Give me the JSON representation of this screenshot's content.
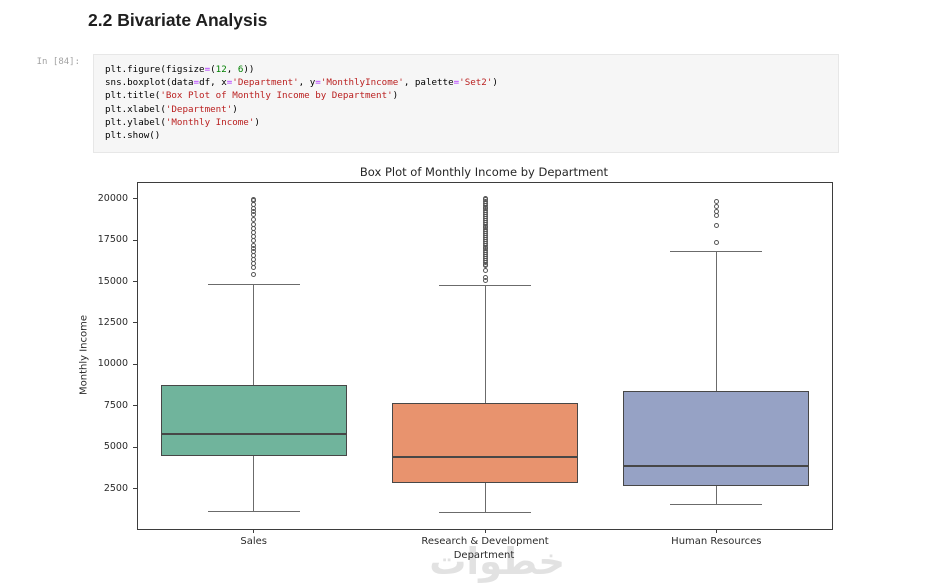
{
  "heading": {
    "text": "2.2 Bivariate Analysis"
  },
  "code_cell": {
    "prompt": "In [84]:",
    "token_colors": {
      "p": "#000000",
      "n": "#008000",
      "s": "#ba2121",
      "o": "#aa22ff"
    },
    "lines": [
      [
        [
          "p",
          "plt.figure(figsize"
        ],
        [
          "o",
          "="
        ],
        [
          "p",
          "("
        ],
        [
          "n",
          "12"
        ],
        [
          "p",
          ", "
        ],
        [
          "n",
          "6"
        ],
        [
          "p",
          "))"
        ]
      ],
      [
        [
          "p",
          "sns.boxplot(data"
        ],
        [
          "o",
          "="
        ],
        [
          "p",
          "df, x"
        ],
        [
          "o",
          "="
        ],
        [
          "s",
          "'Department'"
        ],
        [
          "p",
          ", y"
        ],
        [
          "o",
          "="
        ],
        [
          "s",
          "'MonthlyIncome'"
        ],
        [
          "p",
          ", palette"
        ],
        [
          "o",
          "="
        ],
        [
          "s",
          "'Set2'"
        ],
        [
          "p",
          ")"
        ]
      ],
      [
        [
          "p",
          "plt.title("
        ],
        [
          "s",
          "'Box Plot of Monthly Income by Department'"
        ],
        [
          "p",
          ")"
        ]
      ],
      [
        [
          "p",
          "plt.xlabel("
        ],
        [
          "s",
          "'Department'"
        ],
        [
          "p",
          ")"
        ]
      ],
      [
        [
          "p",
          "plt.ylabel("
        ],
        [
          "s",
          "'Monthly Income'"
        ],
        [
          "p",
          ")"
        ]
      ],
      [
        [
          "p",
          "plt.show()"
        ]
      ]
    ]
  },
  "chart_data": {
    "type": "boxplot",
    "title": "Box Plot of Monthly Income by Department",
    "xlabel": "Department",
    "ylabel": "Monthly Income",
    "categories": [
      "Sales",
      "Research & Development",
      "Human Resources"
    ],
    "ylim": [
      60,
      20950
    ],
    "yticks": [
      2500,
      5000,
      7500,
      10000,
      12500,
      15000,
      17500,
      20000
    ],
    "grid": false,
    "spine_color": "#3d3d3d",
    "whisker_color": "#6b6b6b",
    "edge_color": "#474747",
    "outlier_edge_color": "#565656",
    "series": [
      {
        "name": "Sales",
        "color": "#70b49c",
        "whisker_low": 1100,
        "q1": 4440,
        "median": 5810,
        "q3": 8780,
        "whisker_high": 14800,
        "outliers": [
          15430,
          15860,
          16100,
          16360,
          16560,
          16820,
          17020,
          17200,
          17460,
          17720,
          17960,
          18210,
          18470,
          18770,
          19030,
          19230,
          19440,
          19680,
          19900,
          19980
        ]
      },
      {
        "name": "Research & Development",
        "color": "#e8936e",
        "whisker_low": 1050,
        "q1": 2820,
        "median": 4380,
        "q3": 7650,
        "whisker_high": 14780,
        "outliers": [
          15050,
          15270,
          15640,
          15940,
          16050,
          16165,
          16280,
          16395,
          16510,
          16625,
          16740,
          16855,
          16970,
          17085,
          17200,
          17315,
          17430,
          17545,
          17660,
          17775,
          17890,
          18005,
          18120,
          18235,
          18350,
          18465,
          18580,
          18695,
          18810,
          18925,
          19040,
          19155,
          19270,
          19385,
          19500,
          19615,
          19730,
          19845,
          19930,
          19999
        ]
      },
      {
        "name": "Human Resources",
        "color": "#96a2c5",
        "whisker_low": 1550,
        "q1": 2660,
        "median": 3870,
        "q3": 8410,
        "whisker_high": 16800,
        "outliers": [
          17360,
          18370,
          18970,
          19230,
          19540,
          19820
        ]
      }
    ]
  },
  "watermark": {
    "text": "خطوات"
  }
}
